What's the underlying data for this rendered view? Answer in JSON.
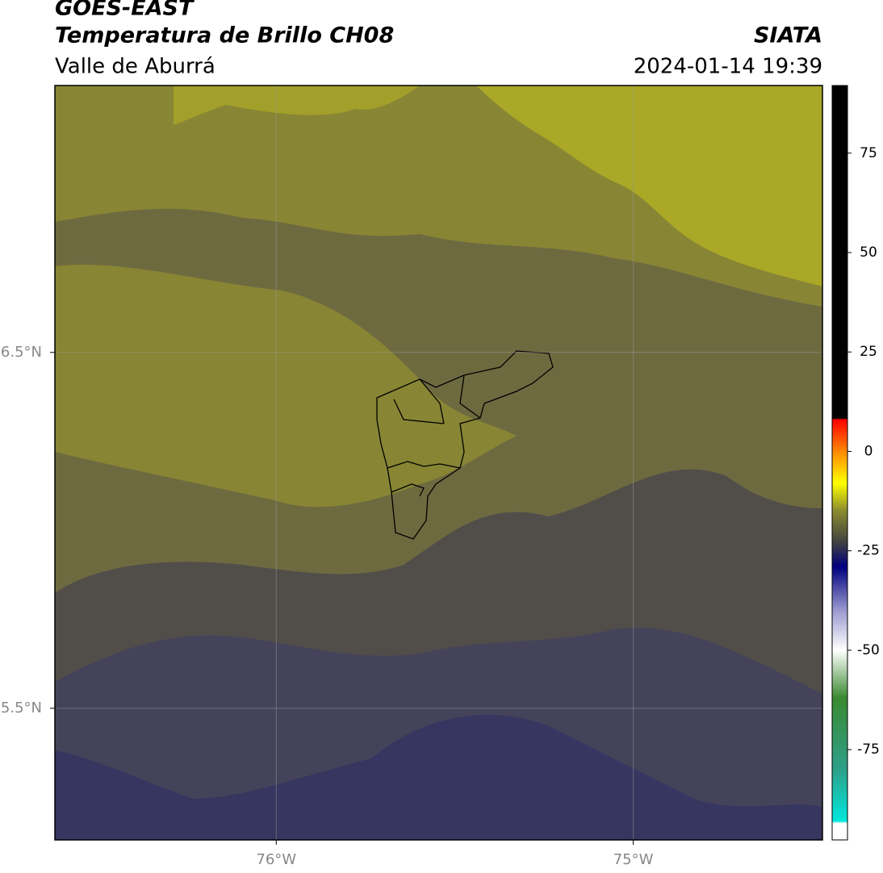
{
  "header": {
    "title": "GOES-EAST",
    "subtitle": "Temperatura de Brillo CH08",
    "region": "Valle de Aburrá",
    "source": "SIATA",
    "datetime": "2024-01-14 19:39"
  },
  "map": {
    "lonlim": [
      -76.62,
      -74.47
    ],
    "latlim": [
      5.13,
      7.25
    ],
    "lon_ticks": [
      {
        "value": -76,
        "label": "76°W"
      },
      {
        "value": -75,
        "label": "75°W"
      }
    ],
    "lat_ticks": [
      {
        "value": 6.5,
        "label": "6.5°N"
      },
      {
        "value": 5.5,
        "label": "5.5°N"
      }
    ]
  },
  "colorbar": {
    "lim": [
      -97.7,
      92
    ],
    "ticks": [
      75,
      50,
      25,
      0,
      -25,
      -50,
      -75
    ],
    "colors": [
      {
        "value": -97.7,
        "color": "#ffffff"
      },
      {
        "value": -93.5,
        "color": "#ffffff"
      },
      {
        "value": -93,
        "color": "#00e8dc"
      },
      {
        "value": -80,
        "color": "#2ea08a"
      },
      {
        "value": -62,
        "color": "#3a8a30"
      },
      {
        "value": -50,
        "color": "#ffffff"
      },
      {
        "value": -40,
        "color": "#9a9ad0"
      },
      {
        "value": -29,
        "color": "#000080"
      },
      {
        "value": -23,
        "color": "#404040"
      },
      {
        "value": -15,
        "color": "#8a8a30"
      },
      {
        "value": -8,
        "color": "#ffff00"
      },
      {
        "value": 0,
        "color": "#ff8800"
      },
      {
        "value": 8,
        "color": "#ff0000"
      },
      {
        "value": 8.3,
        "color": "#000000"
      },
      {
        "value": 92,
        "color": "#000000"
      }
    ]
  }
}
